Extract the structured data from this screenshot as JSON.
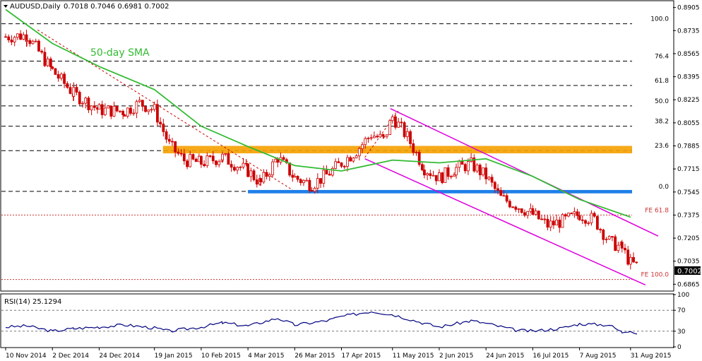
{
  "header": {
    "symbol": "AUDUSD,Daily",
    "ohlc": "0.7018 0.7046 0.6981 0.7002"
  },
  "sma_label": "50-day SMA",
  "last_price_label": "0.7002",
  "rsi_label": "RSI(14) 25.1294",
  "colors": {
    "bull_candle": "#ffffff",
    "candle_line": "#cc0000",
    "sma": "#33bb33",
    "channel": "#dd00dd",
    "resistance_band": "#f5a000",
    "support_band": "#1e7fe8",
    "fib_level": "#000000",
    "fe_level": "#cc3333",
    "rsi": "#000080"
  },
  "chart_data": [
    {
      "type": "candlestick",
      "title": "AUDUSD,Daily",
      "x_ticks": [
        "10 Nov 2014",
        "2 Dec 2014",
        "24 Dec 2014",
        "19 Jan 2015",
        "10 Feb 2015",
        "4 Mar 2015",
        "26 Mar 2015",
        "17 Apr 2015",
        "11 May 2015",
        "2 Jun 2015",
        "24 Jun 2015",
        "16 Jul 2015",
        "7 Aug 2015",
        "31 Aug 2015"
      ],
      "y_ticks": [
        "0.8905",
        "0.8735",
        "0.8565",
        "0.8395",
        "0.8225",
        "0.8055",
        "0.7885",
        "0.7715",
        "0.7545",
        "0.7375",
        "0.7205",
        "0.7035",
        "0.6865"
      ],
      "ylim": [
        0.682,
        0.895
      ],
      "fib_levels": [
        {
          "label": "100.0",
          "value": 0.8785
        },
        {
          "label": "76.4",
          "value": 0.851
        },
        {
          "label": "61.8",
          "value": 0.833
        },
        {
          "label": "50.0",
          "value": 0.818
        },
        {
          "label": "38.2",
          "value": 0.803
        },
        {
          "label": "23.6",
          "value": 0.785
        },
        {
          "label": "0.0",
          "value": 0.755
        }
      ],
      "fe_levels": [
        {
          "label": "FE 61.8",
          "value": 0.7375
        },
        {
          "label": "FE 100.0",
          "value": 0.69
        }
      ],
      "resistance_band": [
        0.783,
        0.7885
      ],
      "support_band": [
        0.7535,
        0.756
      ],
      "last_price": 0.7002,
      "close_series": [
        {
          "date": "10 Nov 2014",
          "value": 0.869
        },
        {
          "date": "20 Nov 2014",
          "value": 0.87
        },
        {
          "date": "2 Dec 2014",
          "value": 0.844
        },
        {
          "date": "12 Dec 2014",
          "value": 0.827
        },
        {
          "date": "24 Dec 2014",
          "value": 0.815
        },
        {
          "date": "5 Jan 2015",
          "value": 0.814
        },
        {
          "date": "12 Jan 2015",
          "value": 0.82
        },
        {
          "date": "19 Jan 2015",
          "value": 0.815
        },
        {
          "date": "26 Jan 2015",
          "value": 0.789
        },
        {
          "date": "2 Feb 2015",
          "value": 0.778
        },
        {
          "date": "10 Feb 2015",
          "value": 0.776
        },
        {
          "date": "20 Feb 2015",
          "value": 0.78
        },
        {
          "date": "4 Mar 2015",
          "value": 0.77
        },
        {
          "date": "10 Mar 2015",
          "value": 0.761
        },
        {
          "date": "18 Mar 2015",
          "value": 0.78
        },
        {
          "date": "26 Mar 2015",
          "value": 0.765
        },
        {
          "date": "3 Apr 2015",
          "value": 0.76
        },
        {
          "date": "10 Apr 2015",
          "value": 0.767
        },
        {
          "date": "17 Apr 2015",
          "value": 0.776
        },
        {
          "date": "24 Apr 2015",
          "value": 0.785
        },
        {
          "date": "1 May 2015",
          "value": 0.797
        },
        {
          "date": "7 May 2015",
          "value": 0.793
        },
        {
          "date": "11 May 2015",
          "value": 0.81
        },
        {
          "date": "18 May 2015",
          "value": 0.795
        },
        {
          "date": "26 May 2015",
          "value": 0.772
        },
        {
          "date": "2 Jun 2015",
          "value": 0.765
        },
        {
          "date": "10 Jun 2015",
          "value": 0.772
        },
        {
          "date": "17 Jun 2015",
          "value": 0.775
        },
        {
          "date": "24 Jun 2015",
          "value": 0.766
        },
        {
          "date": "1 Jul 2015",
          "value": 0.75
        },
        {
          "date": "8 Jul 2015",
          "value": 0.745
        },
        {
          "date": "16 Jul 2015",
          "value": 0.738
        },
        {
          "date": "23 Jul 2015",
          "value": 0.73
        },
        {
          "date": "30 Jul 2015",
          "value": 0.733
        },
        {
          "date": "7 Aug 2015",
          "value": 0.738
        },
        {
          "date": "14 Aug 2015",
          "value": 0.734
        },
        {
          "date": "21 Aug 2015",
          "value": 0.718
        },
        {
          "date": "27 Aug 2015",
          "value": 0.713
        },
        {
          "date": "31 Aug 2015",
          "value": 0.702
        },
        {
          "date": "3 Sep 2015",
          "value": 0.7002
        }
      ],
      "sma50_series": [
        {
          "date": "10 Nov 2014",
          "value": 0.889
        },
        {
          "date": "2 Dec 2014",
          "value": 0.864
        },
        {
          "date": "24 Dec 2014",
          "value": 0.847
        },
        {
          "date": "19 Jan 2015",
          "value": 0.83
        },
        {
          "date": "10 Feb 2015",
          "value": 0.803
        },
        {
          "date": "4 Mar 2015",
          "value": 0.788
        },
        {
          "date": "26 Mar 2015",
          "value": 0.774
        },
        {
          "date": "17 Apr 2015",
          "value": 0.77
        },
        {
          "date": "11 May 2015",
          "value": 0.778
        },
        {
          "date": "2 Jun 2015",
          "value": 0.776
        },
        {
          "date": "24 Jun 2015",
          "value": 0.779
        },
        {
          "date": "16 Jul 2015",
          "value": 0.766
        },
        {
          "date": "7 Aug 2015",
          "value": 0.749
        },
        {
          "date": "31 Aug 2015",
          "value": 0.736
        }
      ]
    },
    {
      "type": "line",
      "title": "RSI(14) 25.1294",
      "y_ticks": [
        "100",
        "70",
        "30",
        "0"
      ],
      "ylim": [
        0,
        100
      ],
      "levels": [
        70,
        30
      ],
      "series": [
        {
          "date": "10 Nov 2014",
          "value": 38
        },
        {
          "date": "20 Nov 2014",
          "value": 40
        },
        {
          "date": "2 Dec 2014",
          "value": 30
        },
        {
          "date": "12 Dec 2014",
          "value": 35
        },
        {
          "date": "24 Dec 2014",
          "value": 38
        },
        {
          "date": "5 Jan 2015",
          "value": 42
        },
        {
          "date": "19 Jan 2015",
          "value": 36
        },
        {
          "date": "26 Jan 2015",
          "value": 30
        },
        {
          "date": "10 Feb 2015",
          "value": 38
        },
        {
          "date": "20 Feb 2015",
          "value": 46
        },
        {
          "date": "4 Mar 2015",
          "value": 40
        },
        {
          "date": "18 Mar 2015",
          "value": 55
        },
        {
          "date": "26 Mar 2015",
          "value": 42
        },
        {
          "date": "10 Apr 2015",
          "value": 50
        },
        {
          "date": "17 Apr 2015",
          "value": 58
        },
        {
          "date": "1 May 2015",
          "value": 68
        },
        {
          "date": "11 May 2015",
          "value": 62
        },
        {
          "date": "26 May 2015",
          "value": 45
        },
        {
          "date": "2 Jun 2015",
          "value": 38
        },
        {
          "date": "17 Jun 2015",
          "value": 50
        },
        {
          "date": "24 Jun 2015",
          "value": 45
        },
        {
          "date": "8 Jul 2015",
          "value": 32
        },
        {
          "date": "16 Jul 2015",
          "value": 30
        },
        {
          "date": "30 Jul 2015",
          "value": 36
        },
        {
          "date": "7 Aug 2015",
          "value": 44
        },
        {
          "date": "21 Aug 2015",
          "value": 42
        },
        {
          "date": "27 Aug 2015",
          "value": 28
        },
        {
          "date": "31 Aug 2015",
          "value": 32
        },
        {
          "date": "3 Sep 2015",
          "value": 25.1
        }
      ]
    }
  ]
}
